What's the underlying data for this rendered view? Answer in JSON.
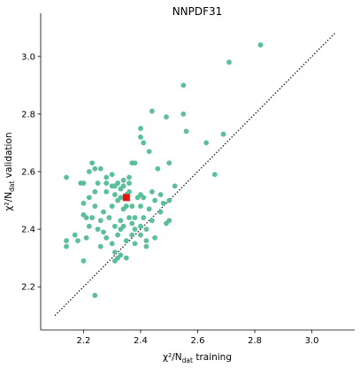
{
  "chart_data": {
    "type": "scatter",
    "title": "NNPDF31",
    "xlabel": {
      "prefix": "χ²/N",
      "sub": "dat",
      "suffix": " training"
    },
    "ylabel": {
      "prefix": "χ²/N",
      "sub": "dat",
      "suffix": " validation"
    },
    "xlim": [
      2.05,
      3.15
    ],
    "ylim": [
      2.05,
      3.15
    ],
    "xticks": [
      2.2,
      2.4,
      2.6,
      2.8,
      3.0
    ],
    "yticks": [
      2.2,
      2.4,
      2.6,
      2.8,
      3.0
    ],
    "xtick_labels": [
      "2.2",
      "2.4",
      "2.6",
      "2.8",
      "3.0"
    ],
    "ytick_labels": [
      "2.2",
      "2.4",
      "2.6",
      "2.8",
      "3.0"
    ],
    "grid": false,
    "diagonal": {
      "style": "dotted",
      "from": [
        2.1,
        2.1
      ],
      "to": [
        3.08,
        3.08
      ]
    },
    "colors": {
      "points": "#5cbf9b",
      "highlight": "#ee1111",
      "diagonal": "#000000"
    },
    "highlight": {
      "marker": "square",
      "x": 2.35,
      "y": 2.51
    },
    "series": [
      {
        "marker": "circle",
        "points": [
          [
            2.82,
            3.04
          ],
          [
            2.71,
            2.98
          ],
          [
            2.55,
            2.9
          ],
          [
            2.55,
            2.8
          ],
          [
            2.49,
            2.79
          ],
          [
            2.44,
            2.81
          ],
          [
            2.56,
            2.74
          ],
          [
            2.69,
            2.73
          ],
          [
            2.63,
            2.7
          ],
          [
            2.4,
            2.75
          ],
          [
            2.4,
            2.72
          ],
          [
            2.41,
            2.7
          ],
          [
            2.43,
            2.67
          ],
          [
            2.38,
            2.63
          ],
          [
            2.37,
            2.63
          ],
          [
            2.5,
            2.63
          ],
          [
            2.46,
            2.61
          ],
          [
            2.36,
            2.58
          ],
          [
            2.66,
            2.59
          ],
          [
            2.14,
            2.58
          ],
          [
            2.23,
            2.63
          ],
          [
            2.22,
            2.6
          ],
          [
            2.24,
            2.61
          ],
          [
            2.26,
            2.61
          ],
          [
            2.28,
            2.58
          ],
          [
            2.3,
            2.59
          ],
          [
            2.28,
            2.56
          ],
          [
            2.25,
            2.56
          ],
          [
            2.19,
            2.56
          ],
          [
            2.2,
            2.56
          ],
          [
            2.24,
            2.53
          ],
          [
            2.28,
            2.53
          ],
          [
            2.3,
            2.55
          ],
          [
            2.31,
            2.55
          ],
          [
            2.32,
            2.56
          ],
          [
            2.33,
            2.54
          ],
          [
            2.34,
            2.55
          ],
          [
            2.34,
            2.57
          ],
          [
            2.36,
            2.56
          ],
          [
            2.36,
            2.53
          ],
          [
            2.35,
            2.52
          ],
          [
            2.33,
            2.51
          ],
          [
            2.31,
            2.52
          ],
          [
            2.32,
            2.5
          ],
          [
            2.39,
            2.51
          ],
          [
            2.4,
            2.52
          ],
          [
            2.41,
            2.51
          ],
          [
            2.44,
            2.53
          ],
          [
            2.47,
            2.52
          ],
          [
            2.52,
            2.55
          ],
          [
            2.22,
            2.51
          ],
          [
            2.2,
            2.49
          ],
          [
            2.24,
            2.48
          ],
          [
            2.27,
            2.46
          ],
          [
            2.3,
            2.48
          ],
          [
            2.34,
            2.47
          ],
          [
            2.35,
            2.48
          ],
          [
            2.37,
            2.48
          ],
          [
            2.4,
            2.48
          ],
          [
            2.43,
            2.47
          ],
          [
            2.45,
            2.5
          ],
          [
            2.48,
            2.49
          ],
          [
            2.5,
            2.5
          ],
          [
            2.2,
            2.45
          ],
          [
            2.21,
            2.44
          ],
          [
            2.23,
            2.44
          ],
          [
            2.26,
            2.43
          ],
          [
            2.29,
            2.44
          ],
          [
            2.33,
            2.43
          ],
          [
            2.36,
            2.44
          ],
          [
            2.38,
            2.44
          ],
          [
            2.41,
            2.44
          ],
          [
            2.44,
            2.43
          ],
          [
            2.47,
            2.46
          ],
          [
            2.22,
            2.41
          ],
          [
            2.25,
            2.4
          ],
          [
            2.27,
            2.39
          ],
          [
            2.31,
            2.41
          ],
          [
            2.33,
            2.4
          ],
          [
            2.34,
            2.41
          ],
          [
            2.37,
            2.42
          ],
          [
            2.38,
            2.4
          ],
          [
            2.4,
            2.41
          ],
          [
            2.42,
            2.4
          ],
          [
            2.49,
            2.42
          ],
          [
            2.5,
            2.43
          ],
          [
            2.17,
            2.38
          ],
          [
            2.21,
            2.37
          ],
          [
            2.28,
            2.37
          ],
          [
            2.32,
            2.38
          ],
          [
            2.37,
            2.38
          ],
          [
            2.4,
            2.38
          ],
          [
            2.42,
            2.36
          ],
          [
            2.45,
            2.37
          ],
          [
            2.14,
            2.36
          ],
          [
            2.18,
            2.36
          ],
          [
            2.26,
            2.34
          ],
          [
            2.3,
            2.35
          ],
          [
            2.35,
            2.36
          ],
          [
            2.38,
            2.35
          ],
          [
            2.14,
            2.34
          ],
          [
            2.31,
            2.32
          ],
          [
            2.33,
            2.31
          ],
          [
            2.42,
            2.34
          ],
          [
            2.2,
            2.29
          ],
          [
            2.31,
            2.29
          ],
          [
            2.32,
            2.3
          ],
          [
            2.35,
            2.3
          ],
          [
            2.24,
            2.17
          ]
        ]
      }
    ]
  }
}
